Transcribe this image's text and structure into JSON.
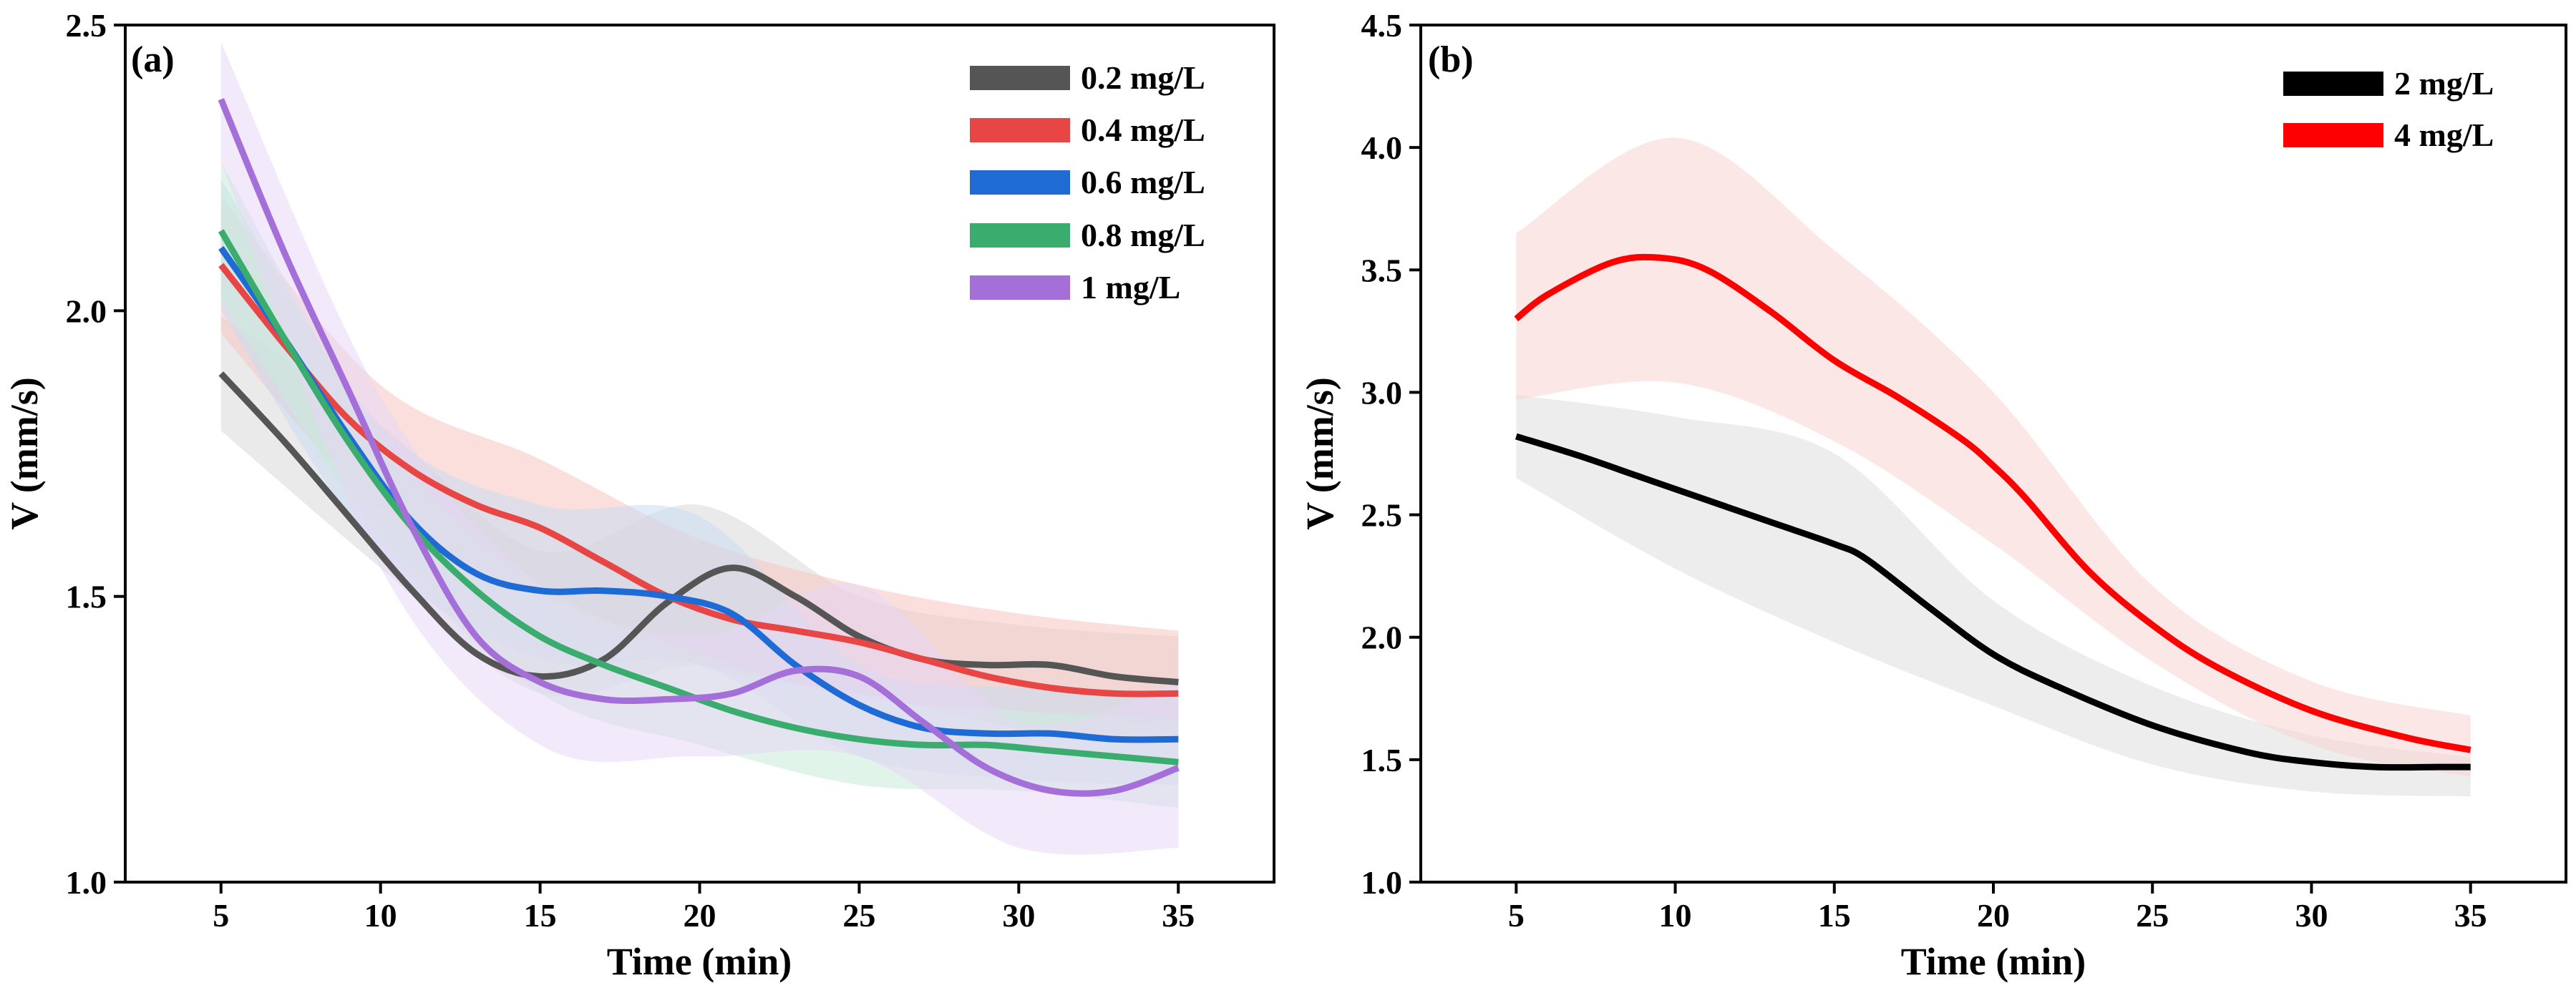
{
  "chart_data": [
    {
      "type": "line",
      "panel_label": "(a)",
      "xlabel": "Time (min)",
      "ylabel": "V (mm/s)",
      "xlim": [
        2,
        38
      ],
      "ylim": [
        1.0,
        2.5
      ],
      "xticks": [
        5,
        10,
        15,
        20,
        25,
        30,
        35
      ],
      "yticks": [
        1.0,
        1.5,
        2.0,
        2.5
      ],
      "ytick_labels": [
        "1.0",
        "1.5",
        "2.0",
        "2.5"
      ],
      "legend_position": "top-right",
      "grid": false,
      "x": [
        5,
        10,
        15,
        20,
        25,
        30,
        35
      ],
      "series": [
        {
          "name": "0.2 mg/L",
          "color": "#555555",
          "band_color": "#d9d9d9",
          "points": [
            [
              5,
              1.89
            ],
            [
              7,
              1.77
            ],
            [
              9,
              1.64
            ],
            [
              11,
              1.51
            ],
            [
              13,
              1.4
            ],
            [
              15,
              1.36
            ],
            [
              17,
              1.39
            ],
            [
              19,
              1.49
            ],
            [
              21,
              1.55
            ],
            [
              23,
              1.5
            ],
            [
              25,
              1.43
            ],
            [
              27,
              1.39
            ],
            [
              29,
              1.38
            ],
            [
              31,
              1.38
            ],
            [
              33,
              1.36
            ],
            [
              35,
              1.35
            ]
          ],
          "upper": [
            [
              5,
              1.99
            ],
            [
              10,
              1.8
            ],
            [
              15,
              1.58
            ],
            [
              20,
              1.66
            ],
            [
              25,
              1.5
            ],
            [
              30,
              1.45
            ],
            [
              35,
              1.43
            ]
          ],
          "lower": [
            [
              5,
              1.79
            ],
            [
              10,
              1.55
            ],
            [
              15,
              1.33
            ],
            [
              20,
              1.38
            ],
            [
              25,
              1.32
            ],
            [
              30,
              1.3
            ],
            [
              35,
              1.27
            ]
          ]
        },
        {
          "name": "0.4 mg/L",
          "color": "#e84545",
          "band_color": "#f6c5c0",
          "points": [
            [
              5,
              2.08
            ],
            [
              7,
              1.94
            ],
            [
              9,
              1.81
            ],
            [
              11,
              1.72
            ],
            [
              13,
              1.66
            ],
            [
              15,
              1.62
            ],
            [
              17,
              1.56
            ],
            [
              19,
              1.5
            ],
            [
              21,
              1.46
            ],
            [
              23,
              1.44
            ],
            [
              25,
              1.42
            ],
            [
              27,
              1.39
            ],
            [
              29,
              1.36
            ],
            [
              31,
              1.34
            ],
            [
              33,
              1.33
            ],
            [
              35,
              1.33
            ]
          ],
          "upper": [
            [
              5,
              2.2
            ],
            [
              10,
              1.87
            ],
            [
              15,
              1.74
            ],
            [
              20,
              1.6
            ],
            [
              25,
              1.52
            ],
            [
              30,
              1.47
            ],
            [
              35,
              1.44
            ]
          ],
          "lower": [
            [
              5,
              1.96
            ],
            [
              10,
              1.65
            ],
            [
              15,
              1.5
            ],
            [
              20,
              1.38
            ],
            [
              25,
              1.33
            ],
            [
              30,
              1.27
            ],
            [
              35,
              1.24
            ]
          ]
        },
        {
          "name": "0.6 mg/L",
          "color": "#1f6bd6",
          "band_color": "#c9dcf3",
          "points": [
            [
              5,
              2.11
            ],
            [
              7,
              1.95
            ],
            [
              9,
              1.78
            ],
            [
              11,
              1.63
            ],
            [
              13,
              1.54
            ],
            [
              15,
              1.51
            ],
            [
              17,
              1.51
            ],
            [
              19,
              1.5
            ],
            [
              21,
              1.47
            ],
            [
              23,
              1.38
            ],
            [
              25,
              1.31
            ],
            [
              27,
              1.27
            ],
            [
              29,
              1.26
            ],
            [
              31,
              1.26
            ],
            [
              33,
              1.25
            ],
            [
              35,
              1.25
            ]
          ],
          "upper": [
            [
              5,
              2.23
            ],
            [
              10,
              1.8
            ],
            [
              15,
              1.66
            ],
            [
              20,
              1.64
            ],
            [
              25,
              1.38
            ],
            [
              30,
              1.34
            ],
            [
              35,
              1.33
            ]
          ],
          "lower": [
            [
              5,
              2.0
            ],
            [
              10,
              1.57
            ],
            [
              15,
              1.39
            ],
            [
              20,
              1.38
            ],
            [
              25,
              1.22
            ],
            [
              30,
              1.18
            ],
            [
              35,
              1.17
            ]
          ]
        },
        {
          "name": "0.8 mg/L",
          "color": "#3aad6e",
          "band_color": "#c8ebd8",
          "points": [
            [
              5,
              2.14
            ],
            [
              7,
              1.95
            ],
            [
              9,
              1.77
            ],
            [
              11,
              1.62
            ],
            [
              13,
              1.51
            ],
            [
              15,
              1.43
            ],
            [
              17,
              1.38
            ],
            [
              19,
              1.34
            ],
            [
              21,
              1.3
            ],
            [
              23,
              1.27
            ],
            [
              25,
              1.25
            ],
            [
              27,
              1.24
            ],
            [
              29,
              1.24
            ],
            [
              31,
              1.23
            ],
            [
              33,
              1.22
            ],
            [
              35,
              1.21
            ]
          ],
          "upper": [
            [
              5,
              2.26
            ],
            [
              10,
              1.78
            ],
            [
              15,
              1.52
            ],
            [
              20,
              1.4
            ],
            [
              25,
              1.32
            ],
            [
              30,
              1.3
            ],
            [
              35,
              1.29
            ]
          ],
          "lower": [
            [
              5,
              2.02
            ],
            [
              10,
              1.6
            ],
            [
              15,
              1.33
            ],
            [
              20,
              1.24
            ],
            [
              25,
              1.17
            ],
            [
              30,
              1.16
            ],
            [
              35,
              1.13
            ]
          ]
        },
        {
          "name": "1 mg/L",
          "color": "#a56fd9",
          "band_color": "#e8d7f6",
          "points": [
            [
              5,
              2.37
            ],
            [
              7,
              2.1
            ],
            [
              9,
              1.86
            ],
            [
              11,
              1.62
            ],
            [
              13,
              1.43
            ],
            [
              15,
              1.35
            ],
            [
              17,
              1.32
            ],
            [
              19,
              1.32
            ],
            [
              21,
              1.33
            ],
            [
              23,
              1.37
            ],
            [
              25,
              1.36
            ],
            [
              27,
              1.28
            ],
            [
              29,
              1.2
            ],
            [
              31,
              1.16
            ],
            [
              33,
              1.16
            ],
            [
              35,
              1.2
            ]
          ],
          "upper": [
            [
              5,
              2.47
            ],
            [
              10,
              1.85
            ],
            [
              15,
              1.52
            ],
            [
              20,
              1.43
            ],
            [
              25,
              1.52
            ],
            [
              30,
              1.28
            ],
            [
              35,
              1.35
            ]
          ],
          "lower": [
            [
              5,
              2.26
            ],
            [
              10,
              1.55
            ],
            [
              15,
              1.24
            ],
            [
              20,
              1.22
            ],
            [
              25,
              1.22
            ],
            [
              30,
              1.06
            ],
            [
              35,
              1.06
            ]
          ]
        }
      ]
    },
    {
      "type": "line",
      "panel_label": "(b)",
      "xlabel": "Time (min)",
      "ylabel": "V (mm/s)",
      "xlim": [
        2,
        38
      ],
      "ylim": [
        1.0,
        4.5
      ],
      "xticks": [
        5,
        10,
        15,
        20,
        25,
        30,
        35
      ],
      "yticks": [
        1.0,
        1.5,
        2.0,
        2.5,
        3.0,
        3.5,
        4.0,
        4.5
      ],
      "ytick_labels": [
        "1.0",
        "1.5",
        "2.0",
        "2.5",
        "3.0",
        "3.5",
        "4.0",
        "4.5"
      ],
      "legend_position": "top-right",
      "grid": false,
      "x": [
        5,
        10,
        15,
        20,
        25,
        30,
        35
      ],
      "series": [
        {
          "name": "2 mg/L",
          "color": "#000000",
          "band_color": "#dedede",
          "points": [
            [
              5,
              2.82
            ],
            [
              7,
              2.74
            ],
            [
              9,
              2.65
            ],
            [
              11,
              2.56
            ],
            [
              13,
              2.47
            ],
            [
              15,
              2.38
            ],
            [
              16,
              2.32
            ],
            [
              18,
              2.12
            ],
            [
              20,
              1.93
            ],
            [
              22,
              1.8
            ],
            [
              25,
              1.64
            ],
            [
              28,
              1.53
            ],
            [
              30,
              1.49
            ],
            [
              32,
              1.47
            ],
            [
              34,
              1.47
            ],
            [
              35,
              1.47
            ]
          ],
          "upper": [
            [
              5,
              2.99
            ],
            [
              10,
              2.9
            ],
            [
              15,
              2.75
            ],
            [
              20,
              2.15
            ],
            [
              25,
              1.8
            ],
            [
              30,
              1.6
            ],
            [
              35,
              1.51
            ]
          ],
          "lower": [
            [
              5,
              2.65
            ],
            [
              10,
              2.28
            ],
            [
              15,
              1.98
            ],
            [
              20,
              1.72
            ],
            [
              25,
              1.48
            ],
            [
              30,
              1.37
            ],
            [
              35,
              1.35
            ]
          ]
        },
        {
          "name": "4 mg/L",
          "color": "#ff0000",
          "band_color": "#fad4d4",
          "points": [
            [
              5,
              3.3
            ],
            [
              6,
              3.4
            ],
            [
              8,
              3.53
            ],
            [
              9.5,
              3.55
            ],
            [
              11,
              3.5
            ],
            [
              13,
              3.33
            ],
            [
              15,
              3.13
            ],
            [
              17,
              2.98
            ],
            [
              19,
              2.81
            ],
            [
              20,
              2.7
            ],
            [
              21,
              2.57
            ],
            [
              23,
              2.27
            ],
            [
              25,
              2.05
            ],
            [
              27,
              1.88
            ],
            [
              30,
              1.7
            ],
            [
              33,
              1.59
            ],
            [
              35,
              1.54
            ]
          ],
          "upper": [
            [
              5,
              3.65
            ],
            [
              10,
              4.04
            ],
            [
              15,
              3.58
            ],
            [
              20,
              3.0
            ],
            [
              25,
              2.21
            ],
            [
              30,
              1.82
            ],
            [
              35,
              1.68
            ]
          ],
          "lower": [
            [
              5,
              2.97
            ],
            [
              10,
              3.04
            ],
            [
              15,
              2.8
            ],
            [
              20,
              2.38
            ],
            [
              25,
              1.9
            ],
            [
              30,
              1.56
            ],
            [
              35,
              1.43
            ]
          ]
        }
      ]
    }
  ]
}
